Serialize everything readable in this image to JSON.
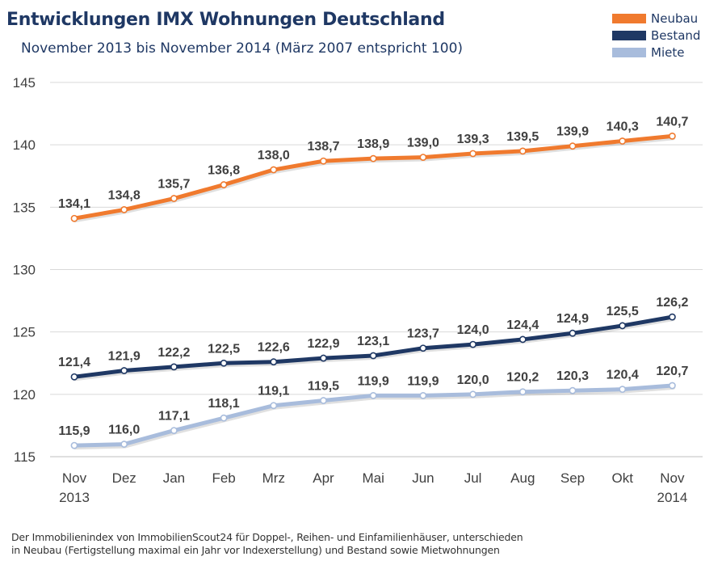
{
  "chart_data": {
    "type": "line",
    "title": "Entwicklungen IMX Wohnungen Deutschland",
    "subtitle": "November 2013 bis November 2014 (März 2007 entspricht 100)",
    "categories": [
      "Nov",
      "Dez",
      "Jan",
      "Feb",
      "Mrz",
      "Apr",
      "Mai",
      "Jun",
      "Jul",
      "Aug",
      "Sep",
      "Okt",
      "Nov"
    ],
    "category_years": [
      "2013",
      "",
      "",
      "",
      "",
      "",
      "",
      "",
      "",
      "",
      "",
      "",
      "2014"
    ],
    "ylim": [
      115,
      145
    ],
    "yticks": [
      115,
      120,
      125,
      130,
      135,
      140,
      145
    ],
    "grid": true,
    "legend_position": "top-right",
    "series": [
      {
        "name": "Neubau",
        "color": "#f07a2e",
        "values": [
          134.1,
          134.8,
          135.7,
          136.8,
          138.0,
          138.7,
          138.9,
          139.0,
          139.3,
          139.5,
          139.9,
          140.3,
          140.7
        ],
        "labels": [
          "134,1",
          "134,8",
          "135,7",
          "136,8",
          "138,0",
          "138,7",
          "138,9",
          "139,0",
          "139,3",
          "139,5",
          "139,9",
          "140,3",
          "140,7"
        ]
      },
      {
        "name": "Bestand",
        "color": "#1f3864",
        "values": [
          121.4,
          121.9,
          122.2,
          122.5,
          122.6,
          122.9,
          123.1,
          123.7,
          124.0,
          124.4,
          124.9,
          125.5,
          126.2
        ],
        "labels": [
          "121,4",
          "121,9",
          "122,2",
          "122,5",
          "122,6",
          "122,9",
          "123,1",
          "123,7",
          "124,0",
          "124,4",
          "124,9",
          "125,5",
          "126,2"
        ]
      },
      {
        "name": "Miete",
        "color": "#a8bcdc",
        "values": [
          115.9,
          116.0,
          117.1,
          118.1,
          119.1,
          119.5,
          119.9,
          119.9,
          120.0,
          120.2,
          120.3,
          120.4,
          120.7
        ],
        "labels": [
          "115,9",
          "116,0",
          "117,1",
          "118,1",
          "119,1",
          "119,5",
          "119,9",
          "119,9",
          "120,0",
          "120,2",
          "120,3",
          "120,4",
          "120,7"
        ]
      }
    ],
    "footnote": [
      "Der Immobilienindex von ImmobilienScout24 für Doppel-, Reihen- und Einfamilienhäuser, unterschieden",
      "in Neubau (Fertigstellung maximal ein Jahr vor Indexerstellung) und Bestand sowie Mietwohnungen"
    ]
  }
}
